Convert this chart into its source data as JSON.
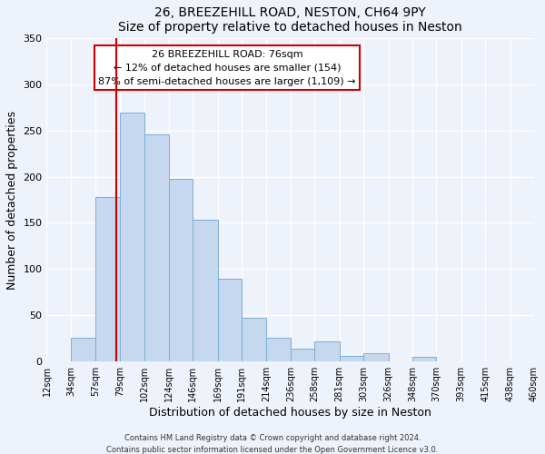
{
  "title1": "26, BREEZEHILL ROAD, NESTON, CH64 9PY",
  "title2": "Size of property relative to detached houses in Neston",
  "xlabel": "Distribution of detached houses by size in Neston",
  "ylabel": "Number of detached properties",
  "footer1": "Contains HM Land Registry data © Crown copyright and database right 2024.",
  "footer2": "Contains public sector information licensed under the Open Government Licence v3.0.",
  "bin_edges": [
    12,
    34,
    57,
    79,
    102,
    124,
    146,
    169,
    191,
    214,
    236,
    258,
    281,
    303,
    326,
    348,
    370,
    393,
    415,
    438,
    460
  ],
  "bin_counts": [
    0,
    25,
    178,
    270,
    246,
    198,
    153,
    89,
    47,
    25,
    14,
    21,
    6,
    9,
    0,
    5,
    0,
    0,
    0,
    0
  ],
  "bar_color": "#c5d8f0",
  "bar_edge_color": "#7aafd4",
  "red_line_x": 76,
  "annotation_title": "26 BREEZEHILL ROAD: 76sqm",
  "annotation_line1": "← 12% of detached houses are smaller (154)",
  "annotation_line2": "87% of semi-detached houses are larger (1,109) →",
  "annotation_box_color": "#ffffff",
  "annotation_box_edge": "#cc0000",
  "red_line_color": "#cc0000",
  "ylim": [
    0,
    350
  ],
  "yticks": [
    0,
    50,
    100,
    150,
    200,
    250,
    300,
    350
  ],
  "tick_labels": [
    "12sqm",
    "34sqm",
    "57sqm",
    "79sqm",
    "102sqm",
    "124sqm",
    "146sqm",
    "169sqm",
    "191sqm",
    "214sqm",
    "236sqm",
    "258sqm",
    "281sqm",
    "303sqm",
    "326sqm",
    "348sqm",
    "370sqm",
    "393sqm",
    "415sqm",
    "438sqm",
    "460sqm"
  ],
  "bg_color": "#eef2fa",
  "grid_color": "#ffffff",
  "title_fontsize": 10,
  "axis_label_fontsize": 9,
  "tick_fontsize": 7,
  "annotation_fontsize": 8
}
